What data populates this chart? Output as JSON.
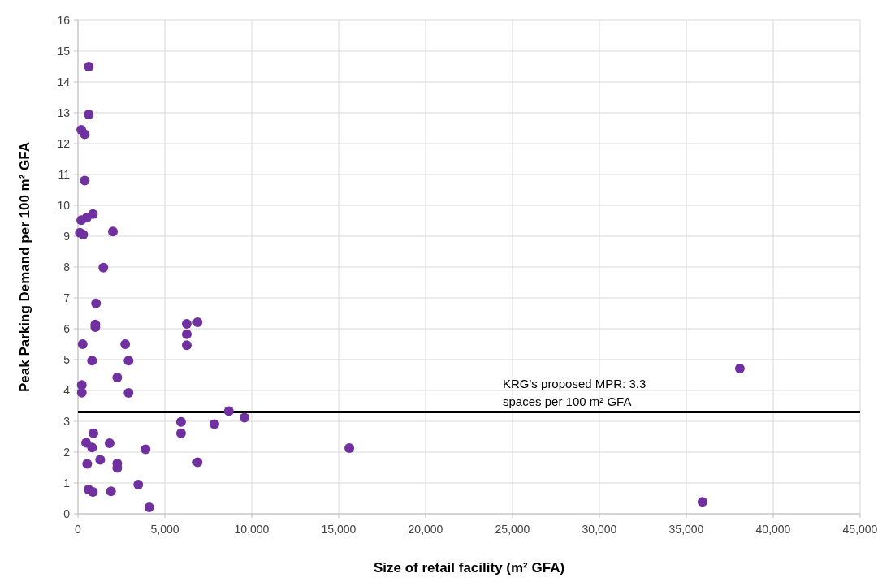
{
  "chart_data": {
    "type": "scatter",
    "xlabel": "Size of retail facility (m² GFA)",
    "ylabel": "Peak Parking Demand per 100 m² GFA",
    "x": [
      620,
      620,
      190,
      390,
      390,
      860,
      500,
      190,
      110,
      300,
      2010,
      1460,
      1040,
      1000,
      1000,
      270,
      2720,
      810,
      2910,
      2260,
      220,
      220,
      2910,
      890,
      470,
      810,
      1820,
      3890,
      530,
      1280,
      2260,
      2260,
      610,
      860,
      1900,
      3470,
      4100,
      6260,
      6880,
      6260,
      6260,
      8680,
      9580,
      5930,
      5930,
      7850,
      6880,
      15610,
      35930,
      38080
    ],
    "series": [
      {
        "color": "#7030a0",
        "values": [
          14.5,
          12.95,
          12.45,
          12.3,
          10.8,
          9.72,
          9.6,
          9.52,
          9.11,
          9.05,
          9.15,
          7.98,
          6.82,
          6.14,
          6.05,
          5.5,
          5.5,
          4.97,
          4.97,
          4.42,
          4.18,
          3.93,
          3.92,
          2.61,
          2.3,
          2.15,
          2.29,
          2.09,
          1.62,
          1.75,
          1.63,
          1.49,
          0.79,
          0.71,
          0.73,
          0.95,
          0.21,
          6.16,
          6.21,
          5.82,
          5.47,
          3.33,
          3.12,
          2.98,
          2.61,
          2.91,
          1.67,
          2.13,
          0.39,
          4.71
        ]
      }
    ],
    "xlim": [
      0,
      45000
    ],
    "xticks": [
      0,
      {
        "value": 5000,
        "label": "5,000"
      },
      {
        "value": 10000,
        "label": "10,000"
      },
      {
        "value": 15000,
        "label": "15,000"
      },
      {
        "value": 20000,
        "label": "20,000"
      },
      {
        "value": 25000,
        "label": "25,000"
      },
      {
        "value": 30000,
        "label": "30,000"
      },
      {
        "value": 35000,
        "label": "35,000"
      },
      {
        "value": 40000,
        "label": "40,000"
      },
      {
        "value": 45000,
        "label": "45,000"
      }
    ],
    "ylim": [
      0,
      16
    ],
    "yticks": [
      0,
      1,
      2,
      3,
      4,
      5,
      6,
      7,
      8,
      9,
      10,
      11,
      12,
      13,
      14,
      15,
      16
    ],
    "ref_lines": [
      {
        "axis": "y",
        "value": 3.3,
        "label": "KRG's proposed MPR: 3.3 spaces per 100 m² GFA",
        "color": "#000000"
      }
    ],
    "grid": true,
    "marker": "circle"
  }
}
